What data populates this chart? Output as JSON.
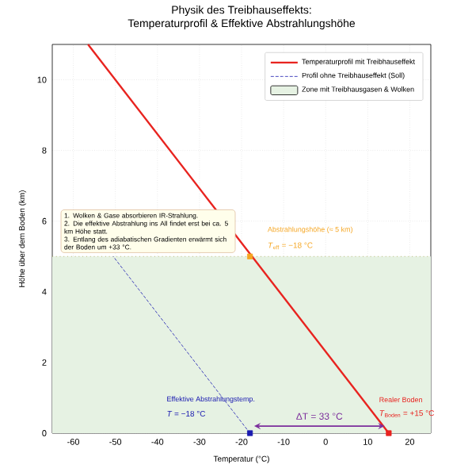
{
  "chart_data": {
    "type": "line",
    "title": "Physik des Treibhauseffekts:\nTemperaturprofil & Effektive Abstrahlungshöhe",
    "xlabel": "Temperatur (°C)",
    "ylabel": "Höhe über dem Boden (km)",
    "xlim": [
      -65,
      25
    ],
    "ylim": [
      0,
      11
    ],
    "xticks": [
      -60,
      -50,
      -40,
      -30,
      -20,
      -10,
      0,
      10,
      20
    ],
    "yticks": [
      0,
      2,
      4,
      6,
      8,
      10
    ],
    "grid": true,
    "legend": "top right",
    "series": [
      {
        "name": "Temperaturprofil mit Treibhauseffekt",
        "color": "#e8231f",
        "x": [
          15,
          -56.5
        ],
        "values": [
          0,
          11
        ],
        "line_style": "solid"
      },
      {
        "name": "Profil ohne Treibhauseffekt (Soll)",
        "color": "#1a1ab0",
        "x": [
          -18,
          -50.5
        ],
        "values": [
          0,
          5
        ],
        "line_style": "dashed"
      },
      {
        "type": "scatter",
        "color": "#f5a623",
        "x": [
          -18
        ],
        "values": [
          5
        ],
        "marker": "square"
      },
      {
        "type": "scatter",
        "color": "#1a1ab0",
        "x": [
          -18
        ],
        "values": [
          0
        ],
        "marker": "square"
      },
      {
        "type": "scatter",
        "color": "#e8231f",
        "x": [
          15
        ],
        "values": [
          0
        ],
        "marker": "square"
      }
    ],
    "bands": [
      {
        "axis": "y",
        "from": 0,
        "to": 5,
        "label": "Zone mit Treibhausgasen & Wolken",
        "color": "#e6f2e3"
      }
    ],
    "ref_lines": [
      {
        "axis": "y",
        "value": 5,
        "color": "#9a9a3a",
        "line_style": "dotted"
      }
    ],
    "annotations": [
      "1. Wolken & Gase absorbieren IR-Strahlung.",
      "2. Die effektive Abstrahlung ins All findet erst bei ca. 5 km Höhe statt.",
      "3. Entlang des adiabatischen Gradienten erwärmt sich der Boden um +33 °C.",
      "Abstrahlungshöhe (≈ 5 km)",
      "*T*$_{eff}$ = −18 °C",
      "Effektive Abstrahlungstemp.",
      "*T* = −18 °C",
      "Realer Boden",
      "*T*$_{Boden}$ = +15 °C",
      "ΔT = 33 °C"
    ]
  }
}
